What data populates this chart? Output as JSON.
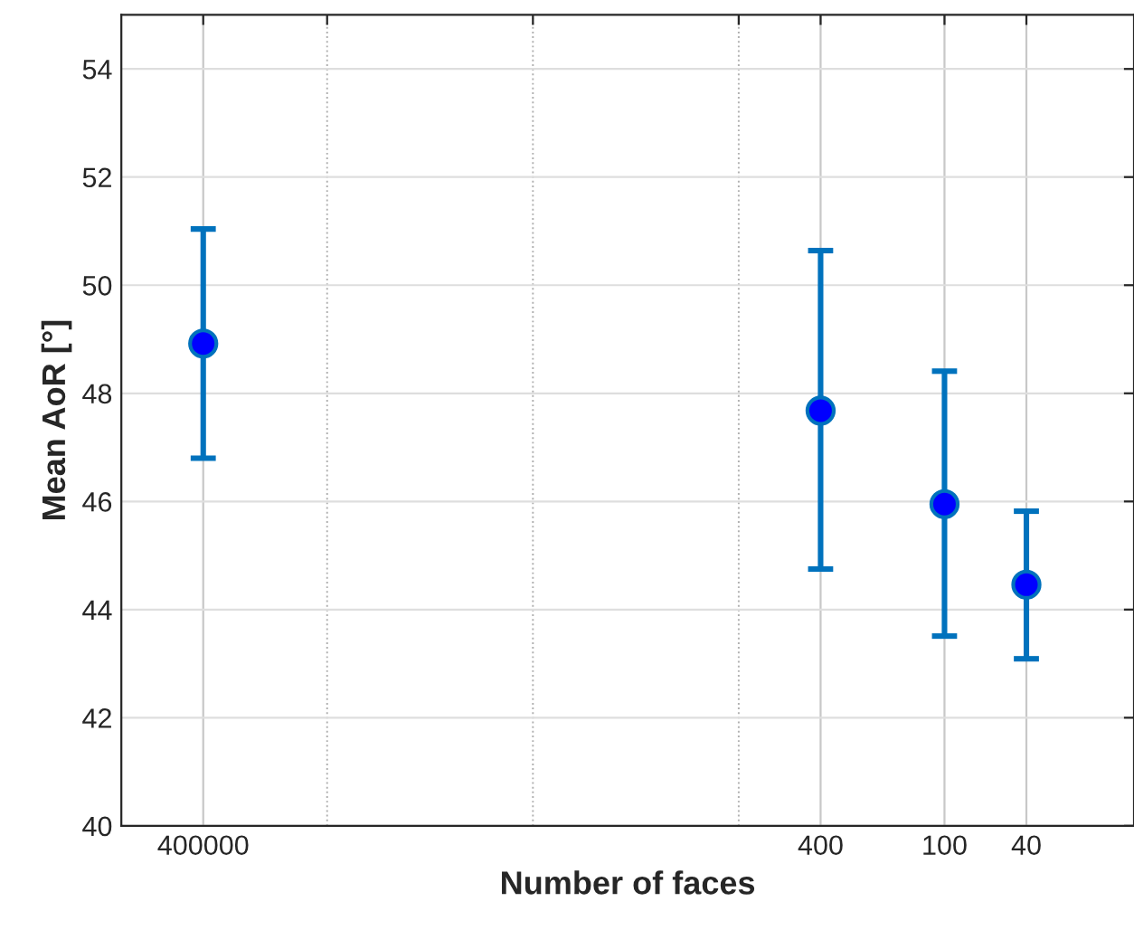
{
  "chart_data": {
    "type": "scatter",
    "xlabel": "Number of faces",
    "ylabel": "Mean AoR [°]",
    "x": [
      400000,
      400,
      100,
      40
    ],
    "series": [
      {
        "color": "#0000ff",
        "values": [
          48.92,
          47.68,
          45.95,
          44.46
        ],
        "errors": [
          [
            46.8,
            51.04
          ],
          [
            44.75,
            50.64
          ],
          [
            43.51,
            48.41
          ],
          [
            43.09,
            45.82
          ]
        ]
      }
    ],
    "log": "x",
    "xlim": [
      1000000,
      12
    ],
    "ylim": [
      40,
      55
    ],
    "xticks": [
      400000,
      {
        "value": 100000,
        "label": null
      },
      {
        "value": 10000,
        "label": null
      },
      {
        "value": 1000,
        "label": null
      },
      400,
      100,
      40
    ],
    "yticks": [
      40,
      42,
      44,
      46,
      48,
      50,
      52,
      54
    ],
    "grid": true,
    "marker": "circle"
  }
}
